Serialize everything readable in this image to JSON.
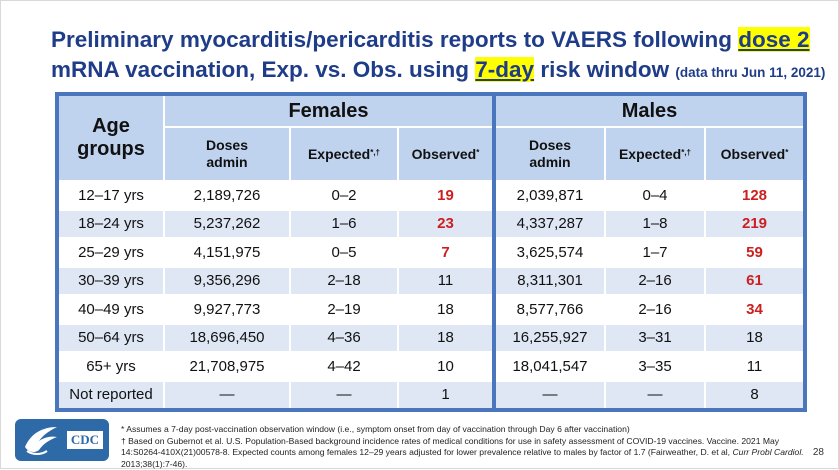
{
  "title": {
    "part1": "Preliminary myocarditis/pericarditis reports to VAERS following ",
    "dose": "dose 2",
    "part2": "mRNA vaccination, Exp. vs. Obs. using ",
    "window": "7-day",
    "part3": " risk window ",
    "note": "(data thru Jun 11, 2021)"
  },
  "table": {
    "age_header": "Age groups",
    "groups": [
      "Females",
      "Males"
    ],
    "columns": {
      "doses_line1": "Doses",
      "doses_line2": "admin",
      "expected": "Expected",
      "expected_mark": "*,†",
      "observed": "Observed",
      "observed_mark": "*"
    },
    "rows": [
      {
        "age": "12–17 yrs",
        "f_doses": "2,189,726",
        "f_exp": "0–2",
        "f_obs": "19",
        "m_doses": "2,039,871",
        "m_exp": "0–4",
        "m_obs": "128"
      },
      {
        "age": "18–24 yrs",
        "f_doses": "5,237,262",
        "f_exp": "1–6",
        "f_obs": "23",
        "m_doses": "4,337,287",
        "m_exp": "1–8",
        "m_obs": "219"
      },
      {
        "age": "25–29 yrs",
        "f_doses": "4,151,975",
        "f_exp": "0–5",
        "f_obs": "7",
        "m_doses": "3,625,574",
        "m_exp": "1–7",
        "m_obs": "59"
      },
      {
        "age": "30–39 yrs",
        "f_doses": "9,356,296",
        "f_exp": "2–18",
        "f_obs": "11",
        "m_doses": "8,311,301",
        "m_exp": "2–16",
        "m_obs": "61"
      },
      {
        "age": "40–49 yrs",
        "f_doses": "9,927,773",
        "f_exp": "2–19",
        "f_obs": "18",
        "m_doses": "8,577,766",
        "m_exp": "2–16",
        "m_obs": "34"
      },
      {
        "age": "50–64 yrs",
        "f_doses": "18,696,450",
        "f_exp": "4–36",
        "f_obs": "18",
        "m_doses": "16,255,927",
        "m_exp": "3–31",
        "m_obs": "18"
      },
      {
        "age": "65+ yrs",
        "f_doses": "21,708,975",
        "f_exp": "4–42",
        "f_obs": "10",
        "m_doses": "18,041,547",
        "m_exp": "3–35",
        "m_obs": "11"
      },
      {
        "age": "Not reported",
        "f_doses": "—",
        "f_exp": "—",
        "f_obs": "1",
        "m_doses": "—",
        "m_exp": "—",
        "m_obs": "8"
      }
    ],
    "highlight": {
      "f_obs": [
        true,
        true,
        true,
        false,
        false,
        false,
        false,
        false
      ],
      "m_obs": [
        true,
        true,
        true,
        true,
        true,
        false,
        false,
        false
      ]
    },
    "colors": {
      "highlight": "#cc1f1f",
      "header_bg": "#bfd2ee",
      "border": "#4a76bd",
      "title": "#1f3c88"
    }
  },
  "footnotes": {
    "note1": "* Assumes a 7-day post-vaccination observation window (i.e., symptom onset from day of vaccination through Day 6 after vaccination)",
    "note2a": "† Based on Gubernot et al. U.S. Population-Based background incidence rates of medical conditions for use in safety assessment of COVID-19 vaccines. Vaccine. 2021 May 14:S0264-410X(21)00578-8. Expected counts among females 12–29 years adjusted for lower prevalence relative to males by factor of 1.7 (Fairweather, D. et al, ",
    "note2_journal": "Curr Probl Cardiol.",
    "note2b": " 2013;38(1):7-46)."
  },
  "logo": {
    "text": "CDC",
    "icon": "hhs-eagle-icon"
  },
  "page_number": "28"
}
